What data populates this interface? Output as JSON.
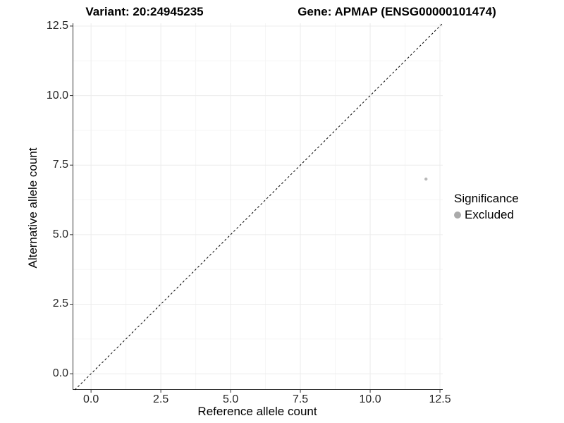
{
  "chart_data": {
    "type": "scatter",
    "title_left": "Variant: 20:24945235",
    "title_right": "Gene: APMAP (ENSG00000101474)",
    "xlabel": "Reference allele count",
    "ylabel": "Alternative allele count",
    "xlim": [
      -0.66,
      12.6
    ],
    "ylim": [
      -0.58,
      12.6
    ],
    "x_ticks": [
      0.0,
      2.5,
      5.0,
      7.5,
      10.0,
      12.5
    ],
    "y_ticks": [
      0.0,
      2.5,
      5.0,
      7.5,
      10.0,
      12.5
    ],
    "x_tick_labels": [
      "0.0",
      "2.5",
      "5.0",
      "7.5",
      "10.0",
      "12.5"
    ],
    "y_tick_labels": [
      "0.0",
      "2.5",
      "5.0",
      "7.5",
      "10.0",
      "12.5"
    ],
    "x_minor_ticks": [
      1.25,
      3.75,
      6.25,
      8.75,
      11.25
    ],
    "y_minor_ticks": [
      1.25,
      3.75,
      6.25,
      8.75,
      11.25
    ],
    "grid": true,
    "legend_position": "right",
    "reference_line": {
      "type": "identity",
      "equation": "y = x",
      "style": "dashed",
      "color": "#000000"
    },
    "series": [
      {
        "name": "Excluded",
        "color": "#b9b9b9",
        "points": [
          {
            "x": 12,
            "y": 7
          }
        ]
      }
    ],
    "legend": {
      "title": "Significance",
      "entries": [
        {
          "label": "Excluded",
          "color": "#aaaaaa"
        }
      ]
    },
    "colors": {
      "grid_major": "#ececec",
      "grid_minor": "#f5f5f5",
      "axis_line": "#333333",
      "tick_mark": "#333333"
    }
  }
}
